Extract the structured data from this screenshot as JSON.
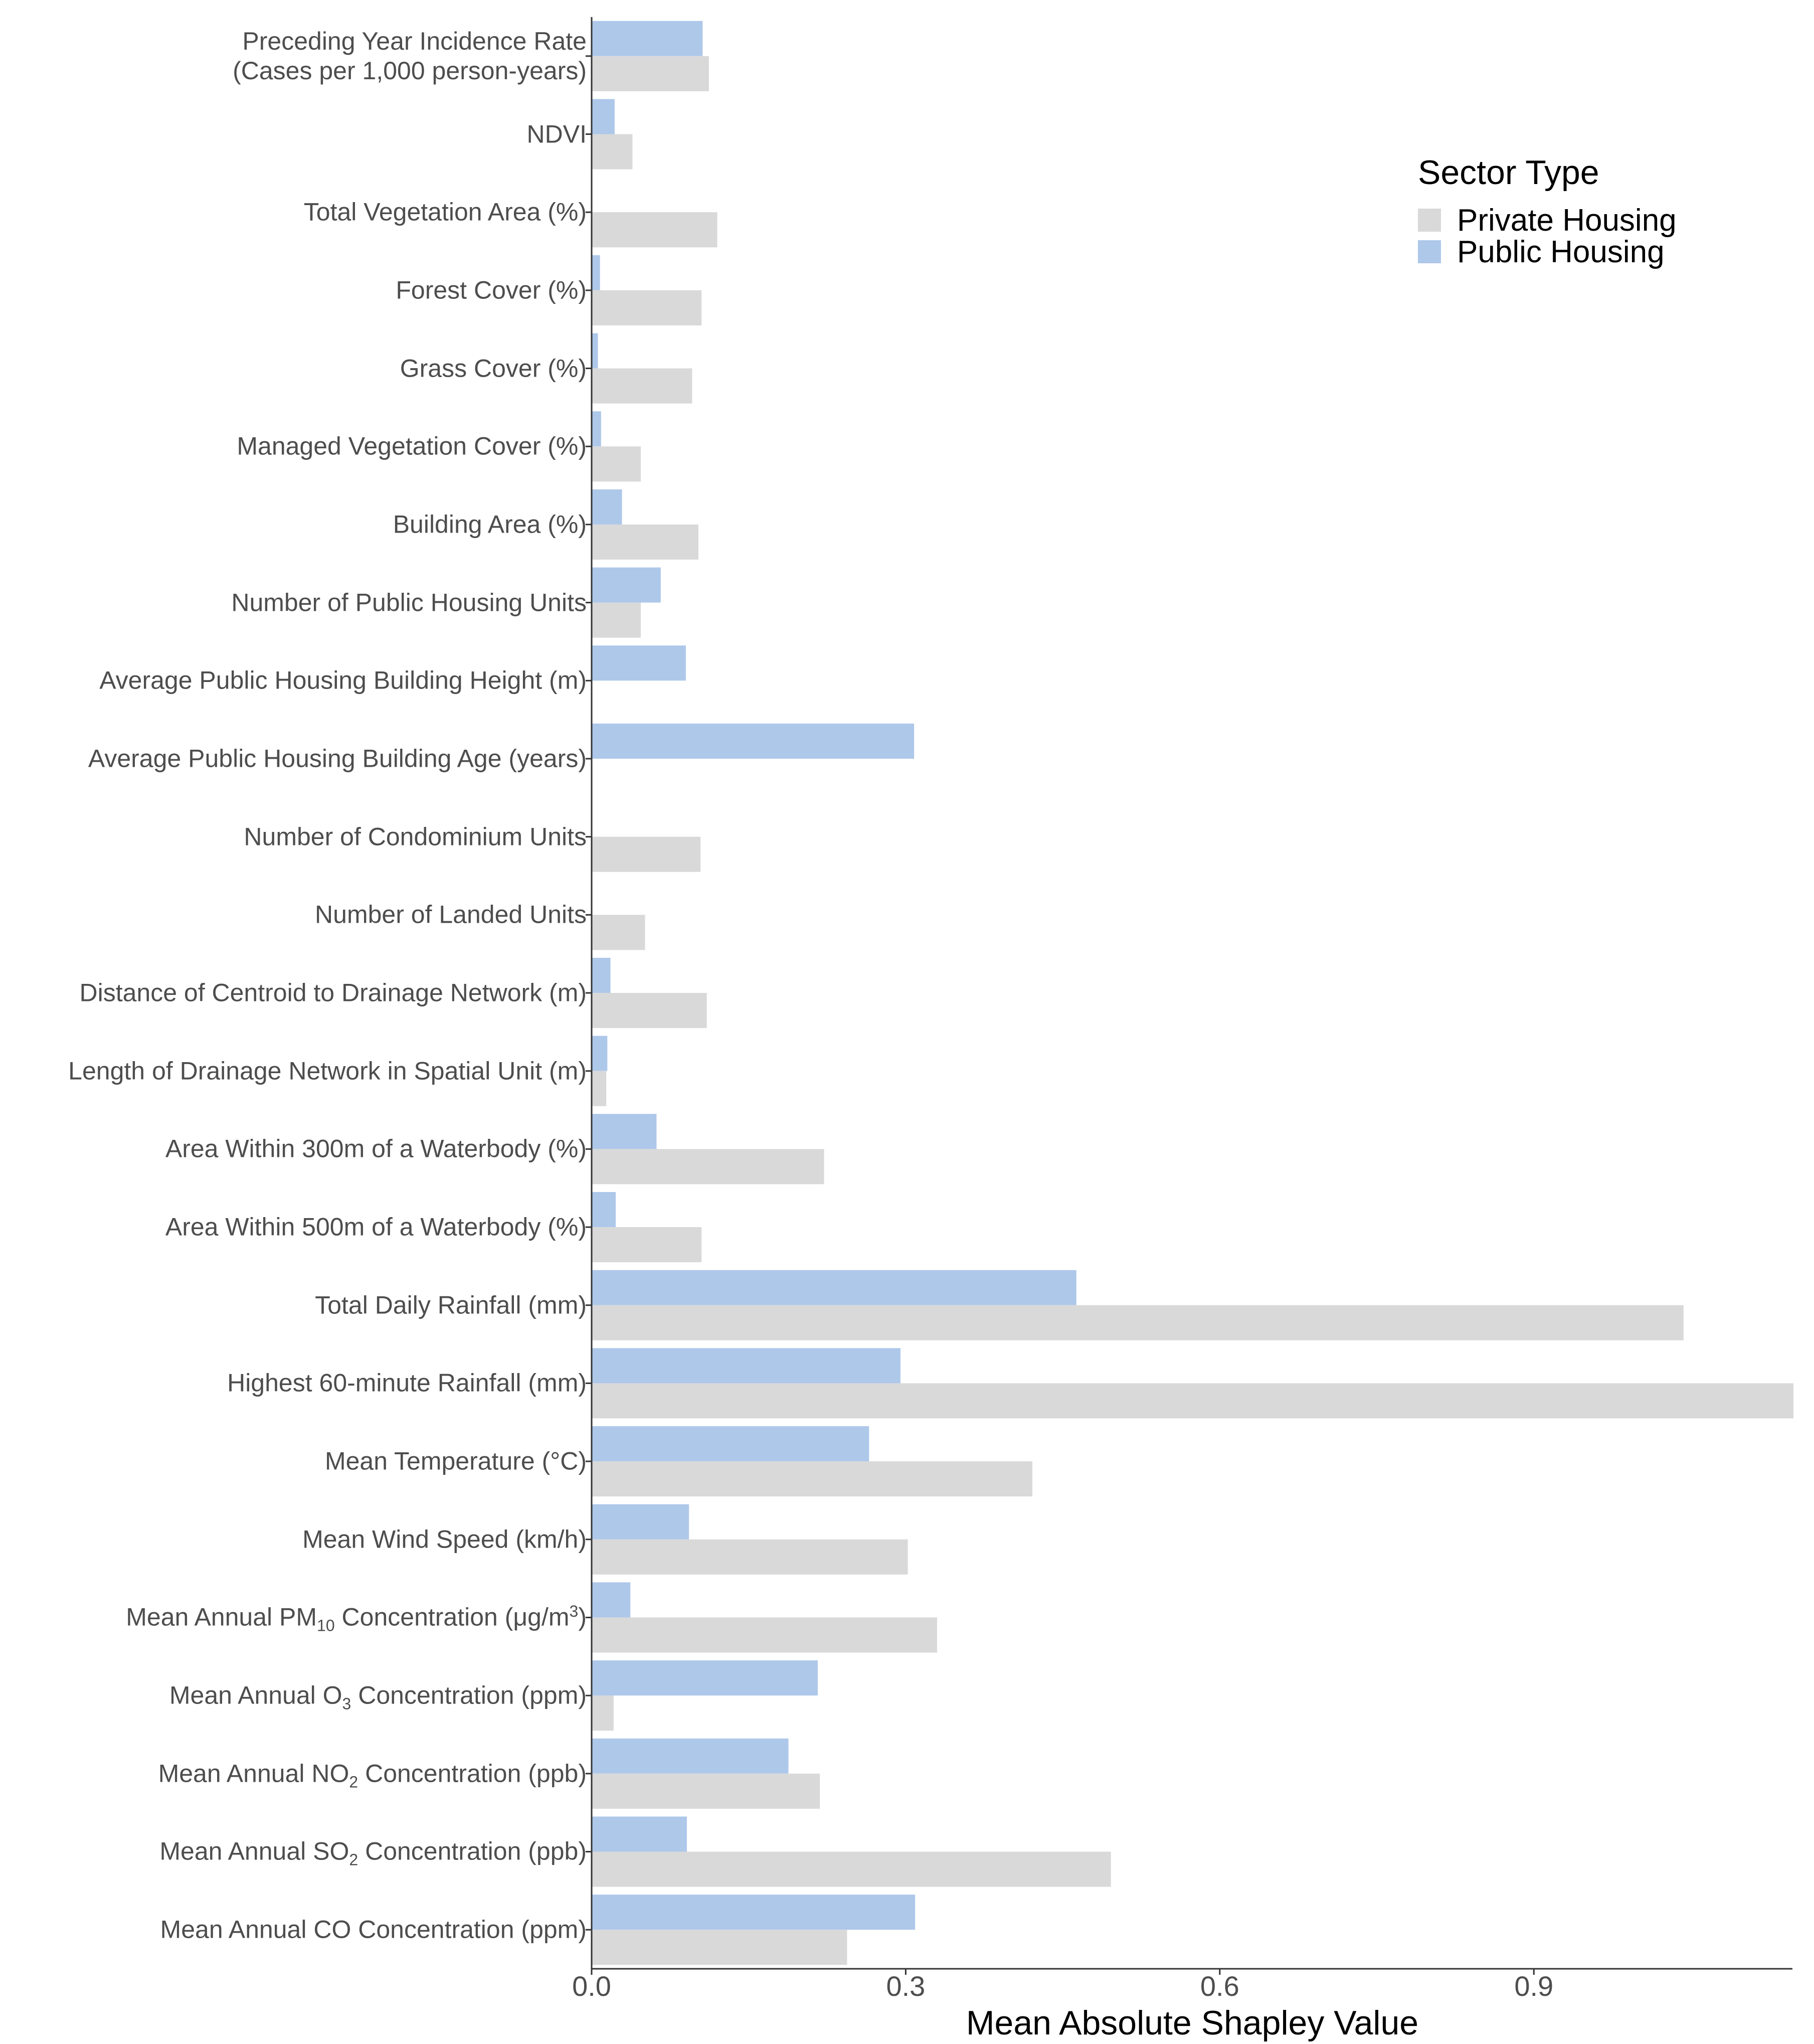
{
  "colors": {
    "private": "#d9d9d9",
    "public": "#aec8ea",
    "axis": "#333333",
    "text": "#4d4d4d"
  },
  "chart_data": {
    "type": "bar",
    "orientation": "horizontal",
    "xlabel": "Mean Absolute Shapley Value",
    "xlim": [
      0,
      1.147
    ],
    "ticks": [
      0.0,
      0.3,
      0.6,
      0.9
    ],
    "tick_labels": [
      "0.0",
      "0.3",
      "0.6",
      "0.9"
    ],
    "legend": {
      "title": "Sector Type",
      "position": "top-right",
      "entries": [
        "Private Housing",
        "Public Housing"
      ]
    },
    "categories": [
      {
        "label": [
          "Preceding Year Incidence Rate",
          "(Cases per 1,000 person-years)"
        ]
      },
      {
        "label": [
          "NDVI"
        ]
      },
      {
        "label": [
          "Total Vegetation Area (%)"
        ]
      },
      {
        "label": [
          "Forest Cover (%)"
        ]
      },
      {
        "label": [
          "Grass Cover (%)"
        ]
      },
      {
        "label": [
          "Managed Vegetation Cover (%)"
        ]
      },
      {
        "label": [
          "Building Area (%)"
        ]
      },
      {
        "label": [
          "Number of Public Housing Units"
        ]
      },
      {
        "label": [
          "Average Public Housing Building Height (m)"
        ]
      },
      {
        "label": [
          "Average Public Housing Building Age (years)"
        ]
      },
      {
        "label": [
          "Number of Condominium Units"
        ]
      },
      {
        "label": [
          "Number of Landed Units"
        ]
      },
      {
        "label": [
          "Distance of Centroid to Drainage Network (m)"
        ]
      },
      {
        "label": [
          "Length of Drainage Network in Spatial Unit (m)"
        ]
      },
      {
        "label": [
          "Area Within 300m of a Waterbody (%)"
        ]
      },
      {
        "label": [
          "Area Within 500m of a Waterbody (%)"
        ]
      },
      {
        "label": [
          "Total Daily Rainfall (mm)"
        ]
      },
      {
        "label": [
          "Highest 60-minute Rainfall (mm)"
        ]
      },
      {
        "label": [
          "Mean Temperature (°C)"
        ]
      },
      {
        "label": [
          "Mean Wind Speed (km/h)"
        ]
      },
      {
        "label": [
          "Mean Annual PM",
          "10",
          " Concentration (μg/m",
          "3",
          ")"
        ]
      },
      {
        "label": [
          "Mean Annual O",
          "3",
          " Concentration (ppm)"
        ]
      },
      {
        "label": [
          "Mean Annual NO",
          "2",
          " Concentration (ppb)"
        ]
      },
      {
        "label": [
          "Mean Annual SO",
          "2",
          " Concentration (ppb)"
        ]
      },
      {
        "label": [
          "Mean Annual CO Concentration (ppm)"
        ]
      }
    ],
    "series": [
      {
        "name": "Public Housing",
        "values": [
          0.106,
          0.022,
          0.0,
          0.008,
          0.006,
          0.009,
          0.029,
          0.066,
          0.09,
          0.308,
          0.0,
          0.0,
          0.018,
          0.015,
          0.062,
          0.023,
          0.463,
          0.295,
          0.265,
          0.093,
          0.037,
          0.216,
          0.188,
          0.091,
          0.309
        ]
      },
      {
        "name": "Private Housing",
        "values": [
          0.112,
          0.039,
          0.12,
          0.105,
          0.096,
          0.047,
          0.102,
          0.047,
          0.0,
          0.0,
          0.104,
          0.051,
          0.11,
          0.014,
          0.222,
          0.105,
          1.043,
          1.148,
          0.421,
          0.302,
          0.33,
          0.021,
          0.218,
          0.496,
          0.244
        ]
      }
    ]
  }
}
